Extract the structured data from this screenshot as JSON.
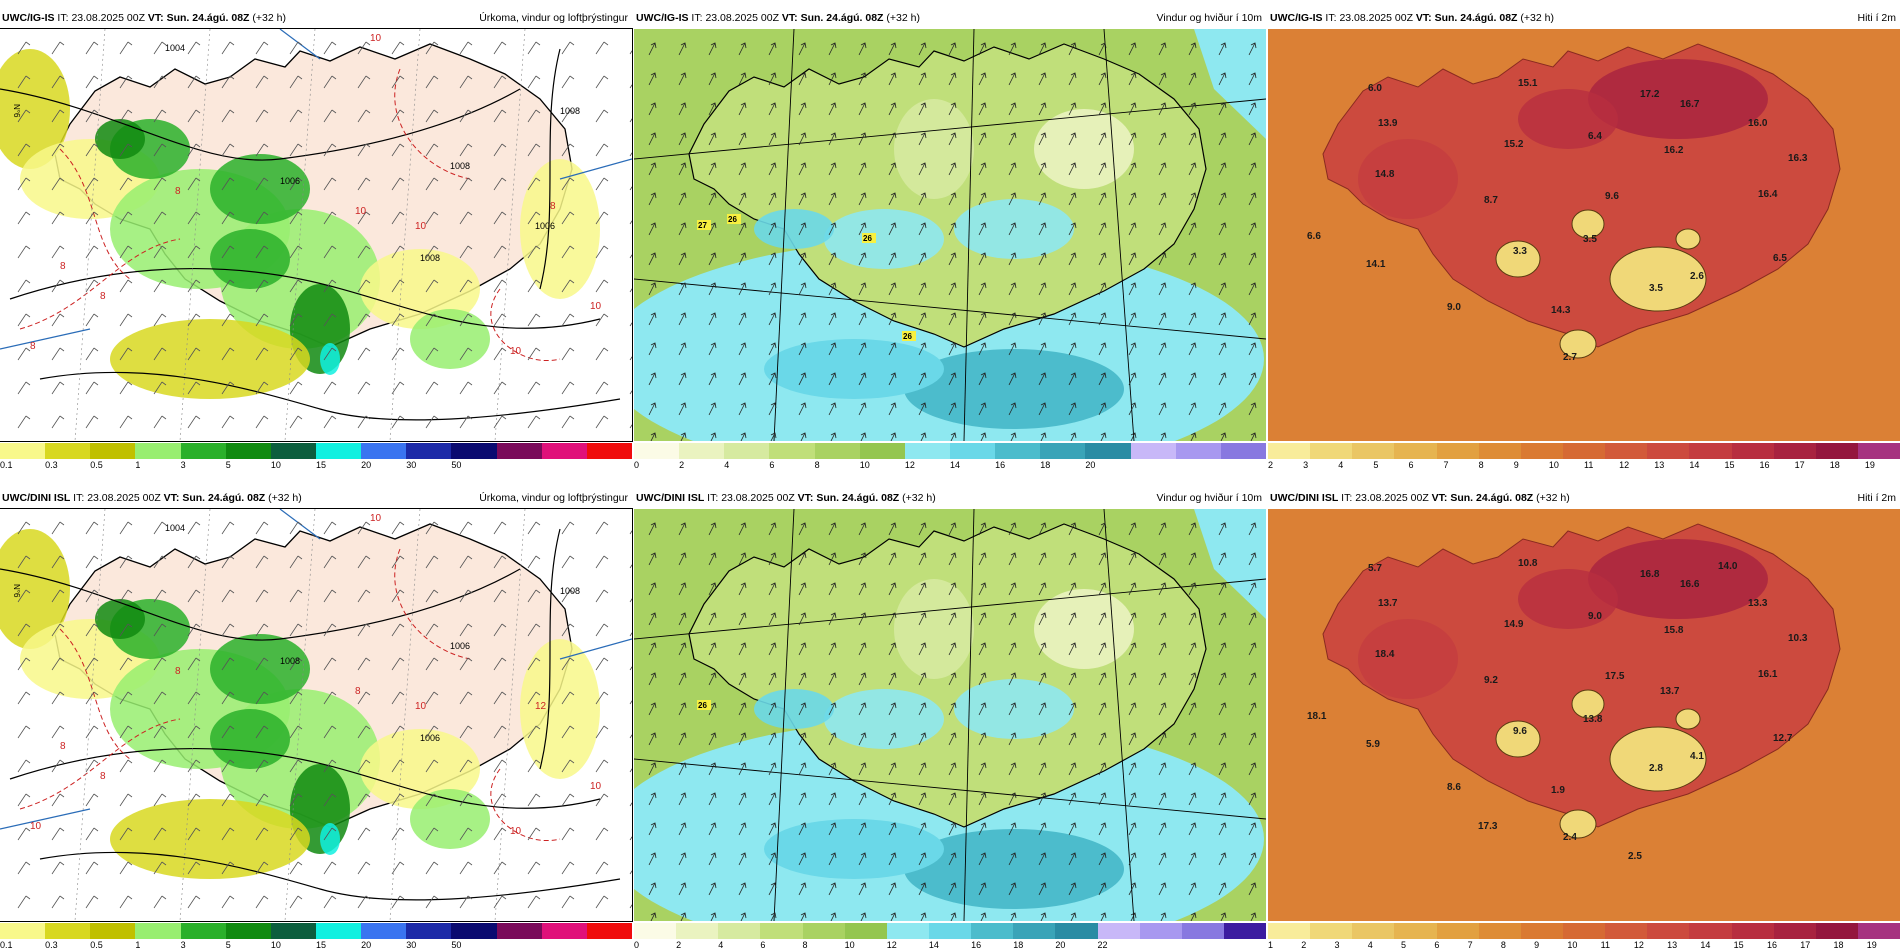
{
  "panels": [
    {
      "id": "p1",
      "model": "UWC/IG-IS",
      "it_label": "IT:",
      "it": "23.08.2025 00Z",
      "vt_label": "VT:",
      "vt": "Sun. 24.ágú. 08Z",
      "lead": "(+32 h)",
      "title": "Úrkoma, vindur og loftþrýstingur",
      "kind": "precip",
      "scale_colors": [
        "#f8f88a",
        "#d8d820",
        "#c0c000",
        "#98ee70",
        "#2ab02a",
        "#108a10",
        "#0c5e3e",
        "#10f0e0",
        "#3a74f0",
        "#1c2aa8",
        "#0a0a70",
        "#7a0a5a",
        "#e0107a",
        "#f00c0c"
      ],
      "scale_labels": [
        "0.1",
        "0.3",
        "0.5",
        "1",
        "3",
        "5",
        "10",
        "15",
        "20",
        "30",
        "50"
      ],
      "labels": [
        "1004",
        "1008",
        "1008",
        "1006",
        "1008",
        "1006",
        "10",
        "10",
        "10",
        "8",
        "8",
        "8",
        "8",
        "10",
        "10",
        "8"
      ]
    },
    {
      "id": "p2",
      "model": "UWC/IG-IS",
      "it_label": "IT:",
      "it": "23.08.2025 00Z",
      "vt_label": "VT:",
      "vt": "Sun. 24.ágú. 08Z",
      "lead": "(+32 h)",
      "title": "Vindur og hviður í 10m",
      "kind": "wind",
      "scale_colors": [
        "#fbfbe6",
        "#eaf3c0",
        "#d6eaa0",
        "#c0df7a",
        "#a9d262",
        "#94c650",
        "#8ee8f0",
        "#6ad8e8",
        "#4cbccc",
        "#3aa4b8",
        "#2a8ca4",
        "#c8b8f8",
        "#a898f0",
        "#8878e0"
      ],
      "scale_labels": [
        "0",
        "2",
        "4",
        "6",
        "8",
        "10",
        "12",
        "14",
        "16",
        "18",
        "20"
      ],
      "labels": [
        "27",
        "26",
        "26",
        "26"
      ]
    },
    {
      "id": "p3",
      "model": "UWC/IG-IS",
      "it_label": "IT:",
      "it": "23.08.2025 00Z",
      "vt_label": "VT:",
      "vt": "Sun. 24.ágú. 08Z",
      "lead": "(+32 h)",
      "title": "Hiti í 2m",
      "kind": "temp",
      "scale_colors": [
        "#f8ec9a",
        "#f0d878",
        "#eac664",
        "#e6b450",
        "#e2a040",
        "#de8c36",
        "#da7a32",
        "#d66a34",
        "#d25a3a",
        "#cc4a3e",
        "#c43c40",
        "#b82e40",
        "#a82240",
        "#94163e",
        "#a63280"
      ],
      "scale_labels": [
        "2",
        "3",
        "4",
        "5",
        "6",
        "7",
        "8",
        "9",
        "10",
        "11",
        "12",
        "13",
        "14",
        "15",
        "16",
        "17",
        "18",
        "19"
      ],
      "labels": [
        "6.0",
        "15.1",
        "17.2",
        "16.7",
        "16.0",
        "13.9",
        "6.4",
        "15.2",
        "16.2",
        "14.8",
        "16.3",
        "16.4",
        "9.6",
        "8.7",
        "6.6",
        "3.5",
        "3.3",
        "6.5",
        "14.1",
        "2.6",
        "3.5",
        "9.0",
        "14.3",
        "2.7"
      ]
    },
    {
      "id": "p4",
      "model": "UWC/DINI ISL",
      "it_label": "IT:",
      "it": "23.08.2025 00Z",
      "vt_label": "VT:",
      "vt": "Sun. 24.ágú. 08Z",
      "lead": "(+32 h)",
      "title": "Úrkoma, vindur og loftþrýstingur",
      "kind": "precip",
      "scale_colors": [
        "#f8f88a",
        "#d8d820",
        "#c0c000",
        "#98ee70",
        "#2ab02a",
        "#108a10",
        "#0c5e3e",
        "#10f0e0",
        "#3a74f0",
        "#1c2aa8",
        "#0a0a70",
        "#7a0a5a",
        "#e0107a",
        "#f00c0c"
      ],
      "scale_labels": [
        "0.1",
        "0.3",
        "0.5",
        "1",
        "3",
        "5",
        "10",
        "15",
        "20",
        "30",
        "50"
      ],
      "labels": [
        "1004",
        "1008",
        "1006",
        "1008",
        "1006",
        "12",
        "10",
        "10",
        "8",
        "8",
        "8",
        "8",
        "10",
        "10",
        "10"
      ]
    },
    {
      "id": "p5",
      "model": "UWC/DINI ISL",
      "it_label": "IT:",
      "it": "23.08.2025 00Z",
      "vt_label": "VT:",
      "vt": "Sun. 24.ágú. 08Z",
      "lead": "(+32 h)",
      "title": "Vindur og hviður í 10m",
      "kind": "wind",
      "scale_colors": [
        "#fbfbe6",
        "#eaf3c0",
        "#d6eaa0",
        "#c0df7a",
        "#a9d262",
        "#94c650",
        "#8ee8f0",
        "#6ad8e8",
        "#4cbccc",
        "#3aa4b8",
        "#2a8ca4",
        "#c8b8f8",
        "#a898f0",
        "#8878e0",
        "#3c1ca0"
      ],
      "scale_labels": [
        "0",
        "2",
        "4",
        "6",
        "8",
        "10",
        "12",
        "14",
        "16",
        "18",
        "20",
        "22"
      ],
      "labels": [
        "26"
      ]
    },
    {
      "id": "p6",
      "model": "UWC/DINI ISL",
      "it_label": "IT:",
      "it": "23.08.2025 00Z",
      "vt_label": "VT:",
      "vt": "Sun. 24.ágú. 08Z",
      "lead": "(+32 h)",
      "title": "Hiti í 2m",
      "kind": "temp",
      "scale_colors": [
        "#f8ec9a",
        "#f0d878",
        "#eac664",
        "#e6b450",
        "#e2a040",
        "#de8c36",
        "#da7a32",
        "#d66a34",
        "#d25a3a",
        "#cc4a3e",
        "#c43c40",
        "#b82e40",
        "#a82240",
        "#94163e",
        "#a63280"
      ],
      "scale_labels": [
        "1",
        "2",
        "3",
        "4",
        "5",
        "6",
        "7",
        "8",
        "9",
        "10",
        "11",
        "12",
        "13",
        "14",
        "15",
        "16",
        "17",
        "18",
        "19"
      ],
      "labels": [
        "5.7",
        "10.8",
        "16.8",
        "16.6",
        "13.3",
        "13.7",
        "9.0",
        "14.9",
        "15.8",
        "18.4",
        "10.3",
        "16.1",
        "17.5",
        "9.2",
        "18.1",
        "13.8",
        "9.6",
        "12.7",
        "5.9",
        "4.1",
        "2.8",
        "8.6",
        "1.9",
        "2.4",
        "13.7",
        "14.0",
        "17.3",
        "2.5"
      ]
    }
  ],
  "latitude_label": "N°6"
}
